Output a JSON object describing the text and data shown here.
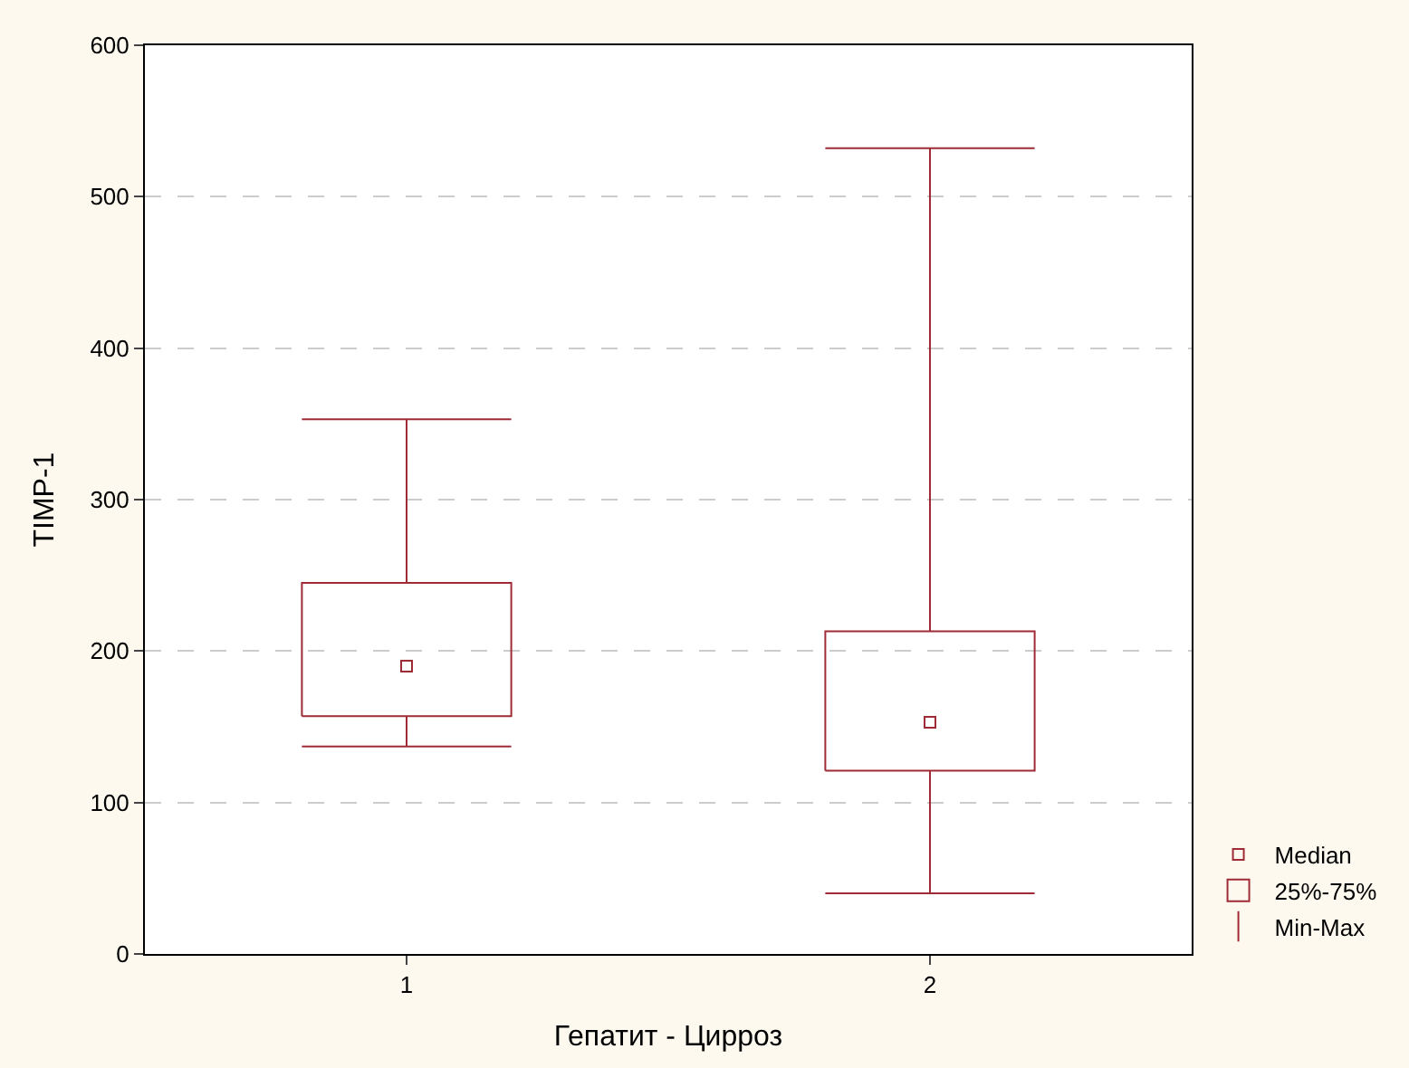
{
  "chart_data": {
    "type": "box",
    "xlabel": "Гепатит - Цирроз",
    "ylabel": "TIMP-1",
    "categories": [
      "1",
      "2"
    ],
    "series": [
      {
        "color": "#9e2b35",
        "boxes": [
          {
            "low": 137,
            "q1": 157,
            "median": 190,
            "q3": 245,
            "high": 353
          },
          {
            "low": 40,
            "q1": 121,
            "median": 153,
            "q3": 213,
            "high": 532
          }
        ]
      }
    ],
    "ylim": [
      0,
      600
    ],
    "yticks": [
      0,
      100,
      200,
      300,
      400,
      500,
      600
    ],
    "grid": "y",
    "marker": "square",
    "annotations": [
      "Median",
      "25%-75%",
      "Min-Max"
    ]
  }
}
